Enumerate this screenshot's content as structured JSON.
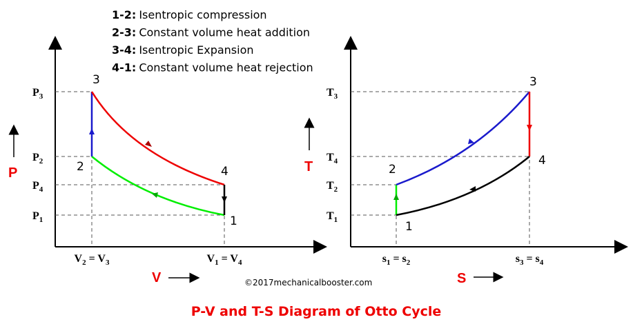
{
  "legend": [
    {
      "key": "1-2:",
      "text": "Isentropic compression"
    },
    {
      "key": "2-3:",
      "text": "Constant volume heat addition"
    },
    {
      "key": "3-4:",
      "text": "Isentropic Expansion"
    },
    {
      "key": "4-1:",
      "text": "Constant volume heat rejection"
    }
  ],
  "pv": {
    "y_label": "P",
    "x_label": "V",
    "yticks": [
      [
        "P",
        "3"
      ],
      [
        "P",
        "2"
      ],
      [
        "P",
        "4"
      ],
      [
        "P",
        "1"
      ]
    ],
    "xticks": [
      [
        "V",
        "2",
        " = V",
        "3"
      ],
      [
        "V",
        "1",
        " = V",
        "4"
      ]
    ],
    "points": [
      "3",
      "2",
      "4",
      "1"
    ]
  },
  "ts": {
    "y_label": "T",
    "x_label": "S",
    "yticks": [
      [
        "T",
        "3"
      ],
      [
        "T",
        "4"
      ],
      [
        "T",
        "2"
      ],
      [
        "T",
        "1"
      ]
    ],
    "xticks": [
      [
        "s",
        "1",
        " = s",
        "2"
      ],
      [
        "s",
        "3",
        " = s",
        "4"
      ]
    ],
    "points": [
      "3",
      "2",
      "4",
      "1"
    ]
  },
  "credit": "©2017mechanicalbooster.com",
  "title": "P-V and T-S Diagram of Otto Cycle"
}
